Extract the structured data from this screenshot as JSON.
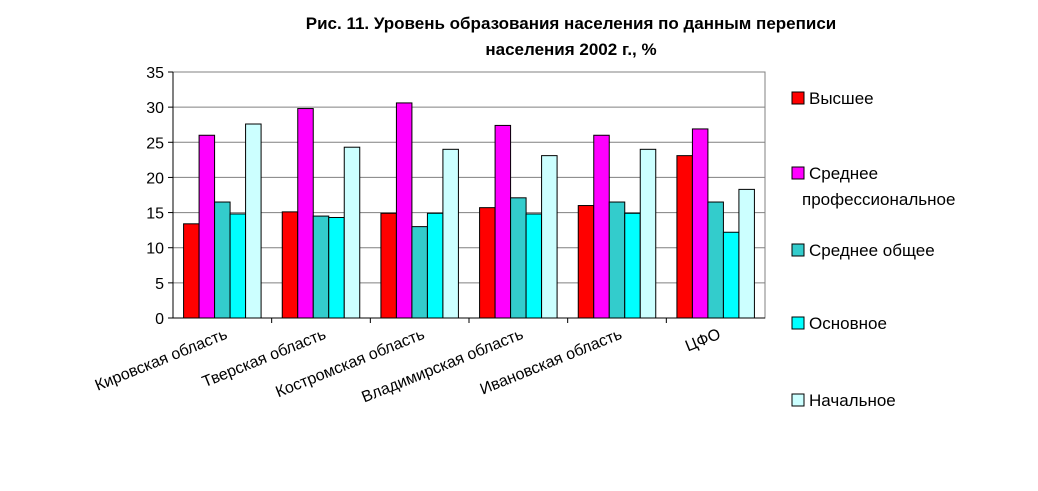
{
  "chart_data": {
    "type": "bar",
    "title": [
      "Рис. 11. Уровень образования населения по данным переписи",
      "населения 2002 г., %"
    ],
    "categories": [
      "Кировская область",
      "Тверская область",
      "Костромская область",
      "Владимирская область",
      "Ивановская область",
      "ЦФО"
    ],
    "ylim": [
      0,
      35
    ],
    "yticks": [
      "0",
      "5",
      "10",
      "15",
      "20",
      "25",
      "30",
      "35"
    ],
    "grid": true,
    "legend_position": "right",
    "series": [
      {
        "name": "Высшее",
        "color": "#ff0000",
        "values": [
          13.4,
          15.1,
          14.9,
          15.7,
          16.0,
          23.1
        ]
      },
      {
        "name": "Среднее профессиональное",
        "name_lines": [
          "Среднее",
          "профессиональное"
        ],
        "color": "#ff00ff",
        "values": [
          26.0,
          29.8,
          30.6,
          27.4,
          26.0,
          26.9
        ]
      },
      {
        "name": "Среднее общее",
        "color": "#33cccc",
        "values": [
          16.5,
          14.5,
          13.0,
          17.1,
          16.5,
          16.5
        ]
      },
      {
        "name": "Основное",
        "color": "#00ffff",
        "values": [
          14.8,
          14.3,
          14.9,
          14.8,
          14.9,
          12.2
        ]
      },
      {
        "name": "Начальное",
        "color": "#ccffff",
        "values": [
          27.6,
          24.3,
          24.0,
          23.1,
          24.0,
          18.3
        ]
      }
    ]
  }
}
